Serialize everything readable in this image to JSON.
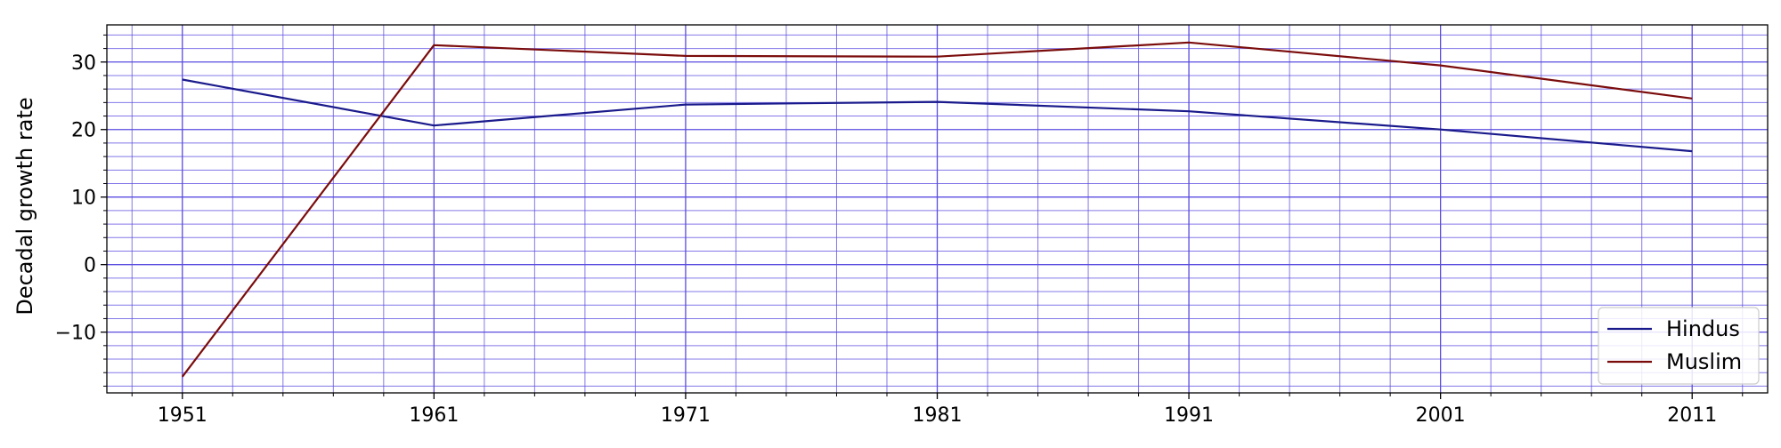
{
  "chart_data": {
    "type": "line",
    "title": "",
    "xlabel": "",
    "ylabel": "Decadal growth rate",
    "x": [
      1951,
      1961,
      1971,
      1981,
      1991,
      2001,
      2011
    ],
    "xlim": [
      1948,
      2014
    ],
    "ylim": [
      -19,
      35.5
    ],
    "xticks": [
      1951,
      1961,
      1971,
      1981,
      1991,
      2001,
      2011
    ],
    "xtick_labels": [
      "1951",
      "1961",
      "1971",
      "1981",
      "1991",
      "2001",
      "2011"
    ],
    "yticks": [
      -10,
      0,
      10,
      20,
      30
    ],
    "ytick_labels": [
      "−10",
      "0",
      "10",
      "20",
      "30"
    ],
    "grid": true,
    "grid_minor": true,
    "grid_color": "#5a4be0",
    "legend_position": "bottom-right",
    "series": [
      {
        "name": "Hindus",
        "color": "#1a1a8c",
        "values": [
          27.4,
          20.6,
          23.7,
          24.1,
          22.7,
          20.0,
          16.8
        ]
      },
      {
        "name": "Muslim",
        "color": "#7b0c0c",
        "values": [
          -16.6,
          32.5,
          30.9,
          30.8,
          32.9,
          29.5,
          24.6
        ]
      }
    ]
  }
}
